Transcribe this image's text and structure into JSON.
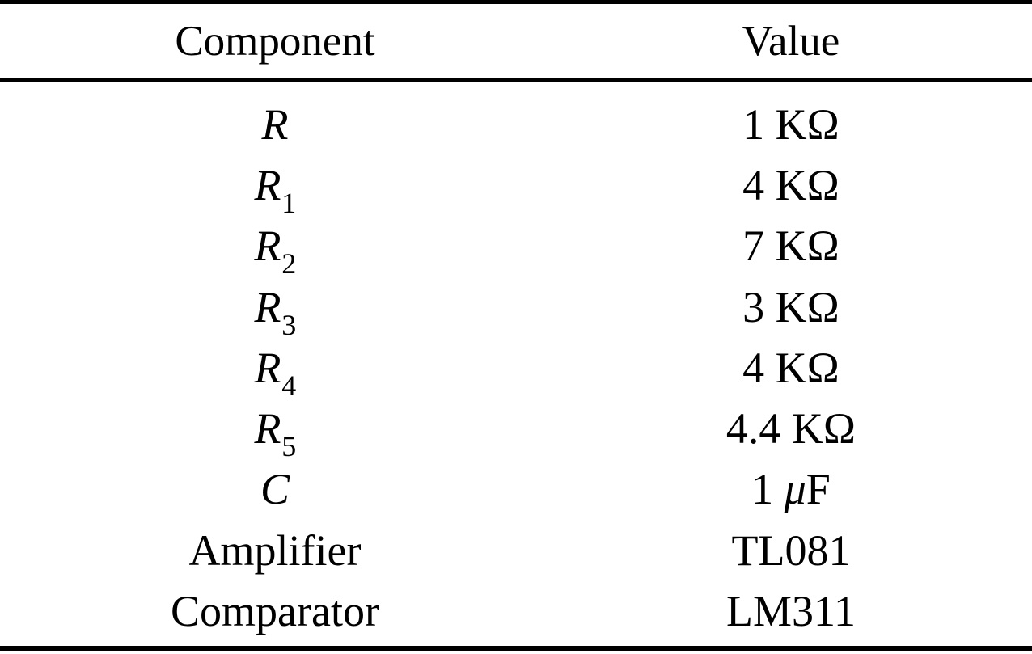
{
  "colors": {
    "background": "#ffffff",
    "text": "#000000",
    "rule": "#000000"
  },
  "table": {
    "headers": [
      "Component",
      "Value"
    ],
    "rows": [
      {
        "component": {
          "base": "R",
          "sub": "",
          "math": true
        },
        "value": "1 KΩ"
      },
      {
        "component": {
          "base": "R",
          "sub": "1",
          "math": true
        },
        "value": "4 KΩ"
      },
      {
        "component": {
          "base": "R",
          "sub": "2",
          "math": true
        },
        "value": "7 KΩ"
      },
      {
        "component": {
          "base": "R",
          "sub": "3",
          "math": true
        },
        "value": "3 KΩ"
      },
      {
        "component": {
          "base": "R",
          "sub": "4",
          "math": true
        },
        "value": "4 KΩ"
      },
      {
        "component": {
          "base": "R",
          "sub": "5",
          "math": true
        },
        "value": "4.4 KΩ"
      },
      {
        "component": {
          "base": "C",
          "sub": "",
          "math": true
        },
        "value": "1 μF"
      },
      {
        "component": {
          "base": "Amplifier",
          "sub": "",
          "math": false
        },
        "value": "TL081"
      },
      {
        "component": {
          "base": "Comparator",
          "sub": "",
          "math": false
        },
        "value": "LM311"
      }
    ]
  }
}
